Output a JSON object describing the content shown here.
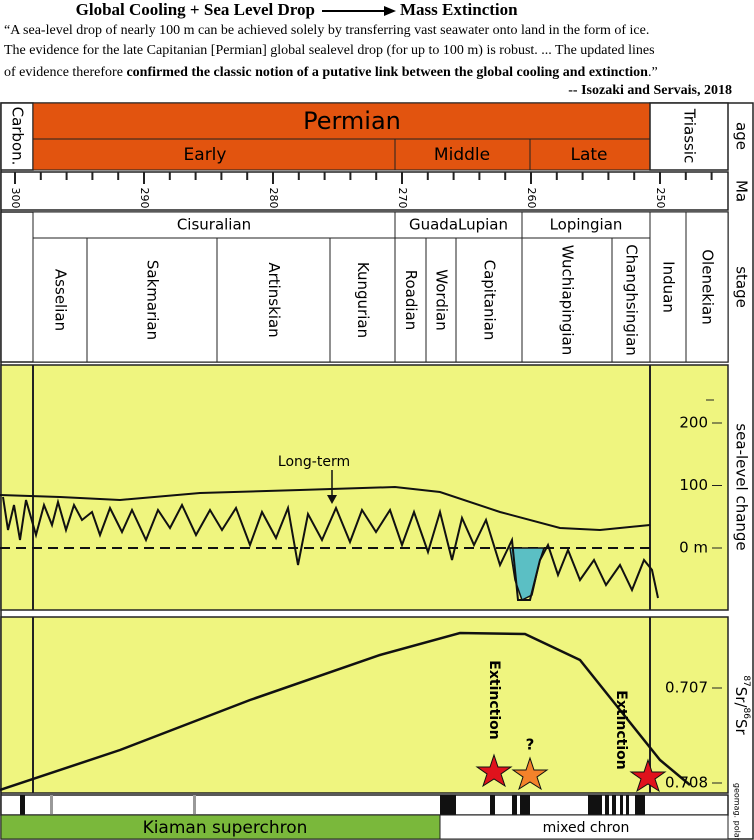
{
  "header": {
    "title": "Global Cooling + Sea Level Drop",
    "title_end": "Mass Extinction",
    "quote": [
      "“A sea-level drop of nearly 100 m can be achieved solely by transferring vast seawater onto land in the form of ice.",
      "The evidence for the late Capitanian [Permian] global sealevel drop (for up to 100 m) is robust. ...  The updated lines",
      "of evidence therefore ",
      "confirmed the classic notion of a putative link between the global cooling and extinction",
      ".”"
    ],
    "attribution": "-- Isozaki and Servais, 2018"
  },
  "column_labels": {
    "age": "age",
    "ma": "Ma",
    "stage": "stage",
    "sea_level": "sea-level change",
    "polarity": "geomag. polarity",
    "sr": [
      "87",
      "Sr/",
      "86",
      "Sr"
    ]
  },
  "ages": {
    "carboniferous": "Carbon.",
    "permian": "Permian",
    "triassic": "Triassic",
    "epochs": [
      "Early",
      "Middle",
      "Late"
    ]
  },
  "ma_ticks": [
    300,
    290,
    280,
    270,
    260,
    250
  ],
  "series": [
    "Cisuralian",
    "GuadaLupian",
    "Lopingian"
  ],
  "stages": [
    "Asselian",
    "Sakmarian",
    "Artinskian",
    "Kungurian",
    "Roadian",
    "Wordian",
    "Capitanian",
    "Wuchiapingian",
    "Changhsingian",
    "Induan",
    "Olenekian"
  ],
  "sea_level": {
    "annotation": "Long-term",
    "ticks": [
      200,
      100,
      {
        "value": 0,
        "label": "0 m"
      }
    ]
  },
  "sr": {
    "ticks": [
      0.707,
      0.708
    ]
  },
  "events": {
    "extinction": [
      "Extinction",
      "Extinction"
    ],
    "question": "?"
  },
  "polarity": [
    "Kiaman superchron",
    "mixed chron"
  ]
}
